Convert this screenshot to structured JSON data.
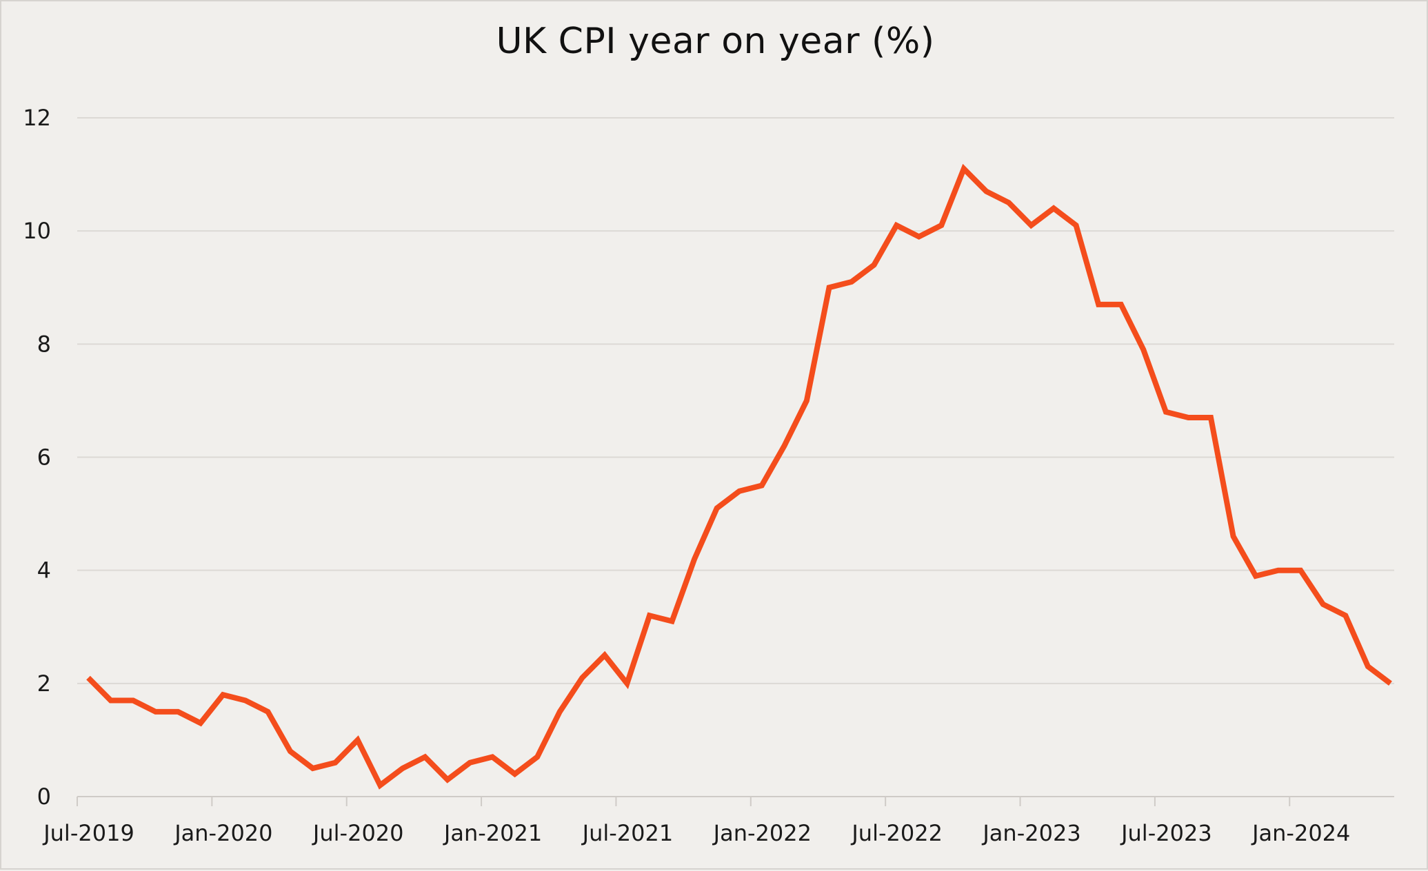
{
  "chart_data": {
    "type": "line",
    "title": "UK CPI year on year (%)",
    "xlabel": "",
    "ylabel": "",
    "ylim": [
      0,
      12
    ],
    "yticks": [
      0,
      2,
      4,
      6,
      8,
      10,
      12
    ],
    "grid": "horizontal",
    "legend": "none",
    "colors": {
      "line": "#f44d1c",
      "grid": "#dcd9d5",
      "axis": "#cfcbc7",
      "background": "#f1efec"
    },
    "x_tick_labels": [
      "Jul-2019",
      "Jan-2020",
      "Jul-2020",
      "Jan-2021",
      "Jul-2021",
      "Jan-2022",
      "Jul-2022",
      "Jan-2023",
      "Jul-2023",
      "Jan-2024"
    ],
    "x": [
      "Jul-2019",
      "Aug-2019",
      "Sep-2019",
      "Oct-2019",
      "Nov-2019",
      "Dec-2019",
      "Jan-2020",
      "Feb-2020",
      "Mar-2020",
      "Apr-2020",
      "May-2020",
      "Jun-2020",
      "Jul-2020",
      "Aug-2020",
      "Sep-2020",
      "Oct-2020",
      "Nov-2020",
      "Dec-2020",
      "Jan-2021",
      "Feb-2021",
      "Mar-2021",
      "Apr-2021",
      "May-2021",
      "Jun-2021",
      "Jul-2021",
      "Aug-2021",
      "Sep-2021",
      "Oct-2021",
      "Nov-2021",
      "Dec-2021",
      "Jan-2022",
      "Feb-2022",
      "Mar-2022",
      "Apr-2022",
      "May-2022",
      "Jun-2022",
      "Jul-2022",
      "Aug-2022",
      "Sep-2022",
      "Oct-2022",
      "Nov-2022",
      "Dec-2022",
      "Jan-2023",
      "Feb-2023",
      "Mar-2023",
      "Apr-2023",
      "May-2023",
      "Jun-2023",
      "Jul-2023",
      "Aug-2023",
      "Sep-2023",
      "Oct-2023",
      "Nov-2023",
      "Dec-2023",
      "Jan-2024",
      "Feb-2024",
      "Mar-2024",
      "Apr-2024",
      "May-2024"
    ],
    "series": [
      {
        "values": [
          2.1,
          1.7,
          1.7,
          1.5,
          1.5,
          1.3,
          1.8,
          1.7,
          1.5,
          0.8,
          0.5,
          0.6,
          1.0,
          0.2,
          0.5,
          0.7,
          0.3,
          0.6,
          0.7,
          0.4,
          0.7,
          1.5,
          2.1,
          2.5,
          2.0,
          3.2,
          3.1,
          4.2,
          5.1,
          5.4,
          5.5,
          6.2,
          7.0,
          9.0,
          9.1,
          9.4,
          10.1,
          9.9,
          10.1,
          11.1,
          10.7,
          10.5,
          10.1,
          10.4,
          10.1,
          8.7,
          8.7,
          7.9,
          6.8,
          6.7,
          6.7,
          4.6,
          3.9,
          4.0,
          4.0,
          3.4,
          3.2,
          2.3,
          2.0
        ]
      }
    ]
  }
}
